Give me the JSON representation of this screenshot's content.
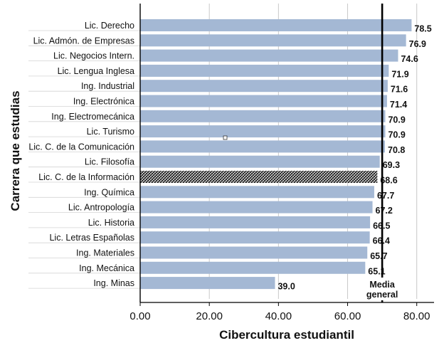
{
  "chart_data": {
    "type": "bar",
    "orientation": "horizontal",
    "xlabel": "Cibercultura estudiantil",
    "ylabel": "Carrera que estudias",
    "xlim": [
      0,
      85
    ],
    "xticks": [
      0,
      20,
      40,
      60,
      80
    ],
    "xtick_labels": [
      "0.00",
      "20.00",
      "40.00",
      "60.00",
      "80.00"
    ],
    "grid": "vertical",
    "colors": {
      "bar": "#a4b8d4",
      "highlight_bar": "#1a1a1a",
      "mean_line": "#000000"
    },
    "categories": [
      "Lic. Derecho",
      "Lic. Admón. de Empresas",
      "Lic. Negocios Intern.",
      "Lic. Lengua Inglesa",
      "Ing. Industrial",
      "Ing. Electrónica",
      "Ing. Electromecánica",
      "Lic. Turismo",
      "Lic. C. de la Comunicación",
      "Lic. Filosofía",
      "Lic. C. de la Información",
      "Ing. Química",
      "Lic. Antropología",
      "Lic. Historia",
      "Lic. Letras Españolas",
      "Ing. Materiales",
      "Ing. Mecánica",
      "Ing. Minas"
    ],
    "values": [
      78.5,
      76.9,
      74.6,
      71.9,
      71.6,
      71.4,
      70.9,
      70.9,
      70.8,
      69.3,
      68.6,
      67.7,
      67.2,
      66.5,
      66.4,
      65.7,
      65.1,
      39.0
    ],
    "value_labels": [
      "78.5",
      "76.9",
      "74.6",
      "71.9",
      "71.6",
      "71.4",
      "70.9",
      "70.9",
      "70.8",
      "69.3",
      "68.6",
      "67.7",
      "67.2",
      "66.5",
      "66.4",
      "65.7",
      "65.1",
      "39.0"
    ],
    "highlight_category": "Lic. C. de la Información",
    "mean": {
      "value": 70.0,
      "label_line1": "Media",
      "label_line2": "general"
    }
  }
}
